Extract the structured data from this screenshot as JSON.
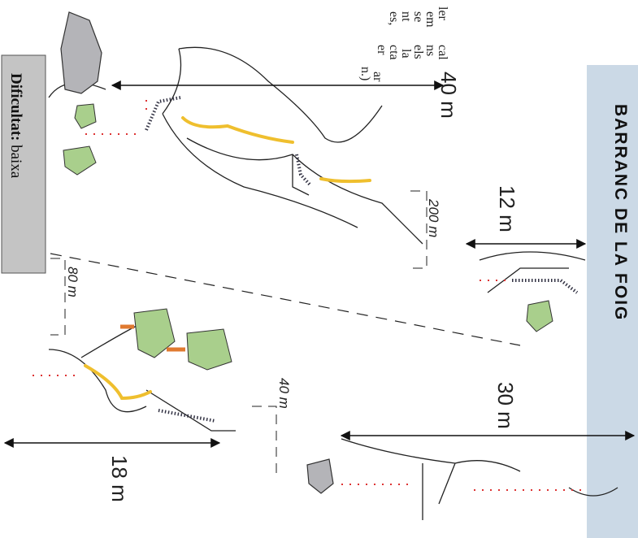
{
  "title": "BARRANC DE LA FOIG",
  "measurements": {
    "a": "40 m",
    "b": "12 m",
    "c": "30 m",
    "d": "18 m"
  },
  "scale_labels": {
    "a": "200 m",
    "b": "80 m",
    "c": "40 m"
  },
  "info_box": {
    "label": "Dificultat:",
    "value": "baixa"
  },
  "text_fragments": [
    "ler",
    "em",
    "se",
    "nt",
    "es,",
    "cal",
    "ns",
    "els",
    "la",
    "cta",
    "er",
    "ar",
    "n.)"
  ]
}
